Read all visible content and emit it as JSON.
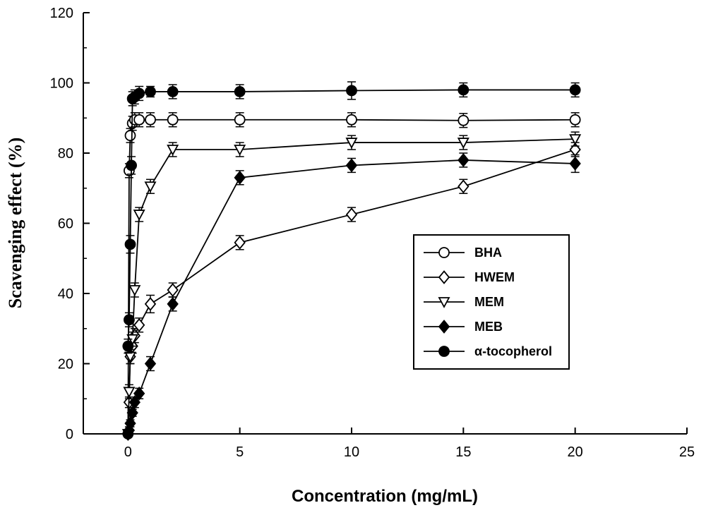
{
  "chart_data": {
    "type": "line",
    "title": "",
    "xlabel": "Concentration (mg/mL)",
    "ylabel": "Scavenging effect (%)",
    "xlim": [
      -2,
      25
    ],
    "ylim": [
      0,
      120
    ],
    "xticks": [
      0,
      5,
      10,
      15,
      20,
      25
    ],
    "yticks": [
      0,
      20,
      40,
      60,
      80,
      100,
      120
    ],
    "xtick_labels": [
      "0",
      "5",
      "10",
      "15",
      "20",
      "25"
    ],
    "ytick_labels": [
      "0",
      "20",
      "40",
      "60",
      "80",
      "100",
      "120"
    ],
    "grid": false,
    "legend_position": "right",
    "series": [
      {
        "name": "BHA",
        "marker": "circle-open",
        "x": [
          0,
          0.05,
          0.1,
          0.2,
          0.3,
          0.5,
          1,
          2,
          5,
          10,
          15,
          20
        ],
        "y": [
          0,
          75,
          85,
          88.5,
          89.5,
          89.5,
          89.5,
          89.5,
          89.5,
          89.5,
          89.3,
          89.5
        ],
        "err": [
          0.5,
          2,
          2,
          2,
          2,
          2,
          2,
          2,
          2,
          2,
          2,
          2
        ]
      },
      {
        "name": "HWEM",
        "marker": "diamond-open",
        "x": [
          0,
          0.05,
          0.1,
          0.2,
          0.3,
          0.5,
          1,
          2,
          5,
          10,
          15,
          20
        ],
        "y": [
          0,
          9,
          22,
          25,
          28,
          31,
          37,
          41,
          54.5,
          62.5,
          70.5,
          81
        ],
        "err": [
          0.5,
          1.5,
          2,
          2,
          2,
          2,
          2.5,
          2,
          2,
          2,
          2,
          2
        ]
      },
      {
        "name": "MEM",
        "marker": "triangle-down-open",
        "x": [
          0,
          0.05,
          0.1,
          0.2,
          0.3,
          0.5,
          1,
          2,
          5,
          10,
          15,
          20
        ],
        "y": [
          0,
          12,
          22,
          27,
          41,
          62.5,
          70.5,
          81,
          81,
          83,
          83,
          84
        ],
        "err": [
          0.5,
          2,
          2,
          2,
          2,
          2,
          2,
          2,
          2,
          2,
          2,
          2
        ]
      },
      {
        "name": "MEB",
        "marker": "diamond-filled",
        "x": [
          0,
          0.05,
          0.1,
          0.2,
          0.3,
          0.5,
          1,
          2,
          5,
          10,
          15,
          20
        ],
        "y": [
          0,
          1,
          3,
          6,
          9,
          11.5,
          20,
          37,
          73,
          76.5,
          78,
          77
        ],
        "err": [
          0.5,
          1,
          1,
          1,
          1.5,
          1.5,
          2,
          2,
          2,
          2,
          2,
          2.5
        ]
      },
      {
        "name": "α-tocopherol",
        "marker": "circle-filled",
        "x": [
          0,
          0.05,
          0.1,
          0.15,
          0.2,
          0.3,
          0.5,
          1,
          2,
          5,
          10,
          15,
          20
        ],
        "y": [
          25,
          32.5,
          54,
          76.5,
          95.5,
          96,
          97,
          97.5,
          97.5,
          97.5,
          97.8,
          98,
          98
        ],
        "err": [
          2,
          2,
          2.5,
          2.5,
          2,
          2,
          2,
          1.5,
          2,
          2,
          2.5,
          2,
          2
        ]
      }
    ]
  }
}
